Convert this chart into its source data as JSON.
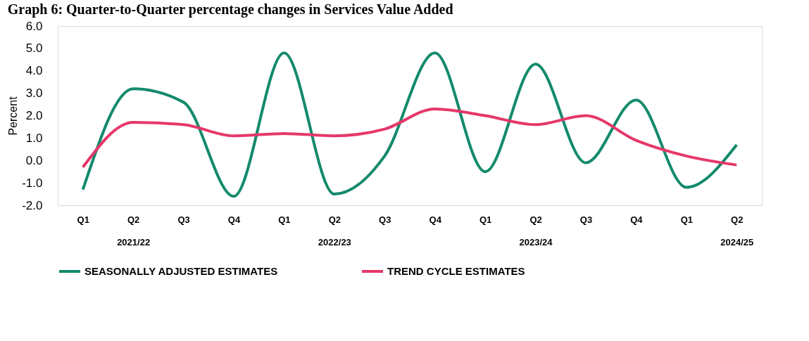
{
  "chart_data": {
    "type": "line",
    "title": "Graph 6: Quarter-to-Quarter percentage changes in Services Value Added",
    "ylabel": "Percent",
    "categories": [
      "Q1",
      "Q2\n2021/22",
      "Q3",
      "Q4",
      "Q1",
      "Q2\n2022/23",
      "Q3",
      "Q4",
      "Q1",
      "Q2\n2023/24",
      "Q3",
      "Q4",
      "Q1",
      "Q2\n2024/25"
    ],
    "series": [
      {
        "name": "SEASONALLY ADJUSTED ESTIMATES",
        "color": "#138a6b",
        "values": [
          -1.3,
          3.2,
          2.6,
          -1.6,
          4.8,
          -1.5,
          0.2,
          4.8,
          -0.5,
          4.3,
          -0.1,
          2.7,
          -1.2,
          0.7
        ]
      },
      {
        "name": "TREND CYCLE ESTIMATES",
        "color": "#e5386a",
        "values": [
          -0.3,
          1.7,
          1.6,
          1.1,
          1.2,
          1.1,
          1.4,
          2.3,
          2.0,
          1.6,
          2.0,
          0.9,
          0.2,
          -0.2
        ]
      }
    ],
    "ylim": [
      -2,
      6
    ],
    "yticks": [
      {
        "value": -2,
        "label": "-2.0"
      },
      {
        "value": -1,
        "label": "-1.0"
      },
      {
        "value": 0,
        "label": "0.0"
      },
      {
        "value": 1,
        "label": "1.0"
      },
      {
        "value": 2,
        "label": "2.0"
      },
      {
        "value": 3,
        "label": "3.0"
      },
      {
        "value": 4,
        "label": "4.0"
      },
      {
        "value": 5,
        "label": "5.0"
      },
      {
        "value": 6,
        "label": "6.0"
      }
    ],
    "grid": false,
    "legend": "bottom",
    "marker": "none",
    "line_style": "solid"
  }
}
